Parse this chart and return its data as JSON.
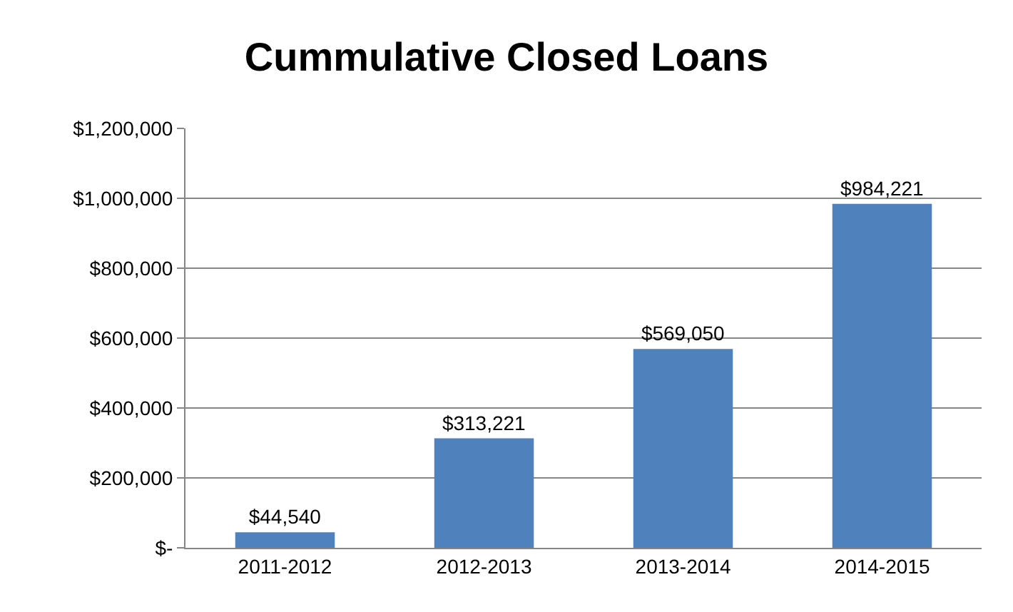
{
  "chart_data": {
    "type": "bar",
    "title": "Cummulative Closed Loans",
    "categories": [
      "2011-2012",
      "2012-2013",
      "2013-2014",
      "2014-2015"
    ],
    "values": [
      44540,
      313221,
      569050,
      984221
    ],
    "value_labels": [
      "$44,540",
      "$313,221",
      "$569,050",
      "$984,221"
    ],
    "color": "#4f81bd",
    "ylim": [
      0,
      1200000
    ],
    "yticks": [
      {
        "value": 0,
        "label": "$-"
      },
      {
        "value": 200000,
        "label": "$200,000"
      },
      {
        "value": 400000,
        "label": "$400,000"
      },
      {
        "value": 600000,
        "label": "$600,000"
      },
      {
        "value": 800000,
        "label": "$800,000"
      },
      {
        "value": 1000000,
        "label": "$1,000,000"
      },
      {
        "value": 1200000,
        "label": "$1,200,000"
      }
    ],
    "grid": "y",
    "legend": false
  }
}
